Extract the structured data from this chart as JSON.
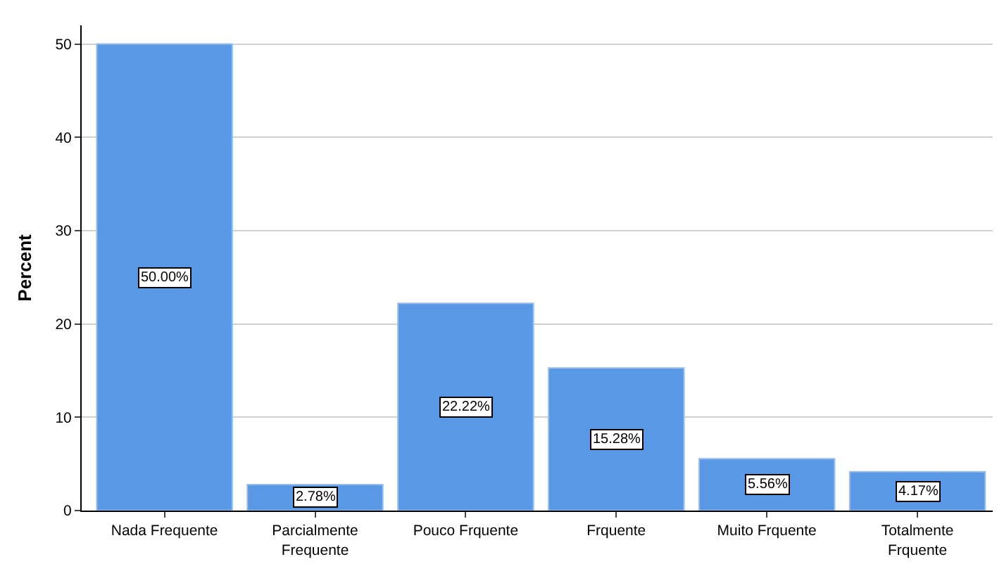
{
  "chart_data": {
    "type": "bar",
    "ylabel": "Percent",
    "categories": [
      "Nada Frequente",
      "Parcialmente Frequente",
      "Pouco Frquente",
      "Frquente",
      "Muito Frquente",
      "Totalmente Frquente"
    ],
    "values": [
      50.0,
      2.78,
      22.22,
      15.28,
      5.56,
      4.17
    ],
    "value_labels": [
      "50.00%",
      "2.78%",
      "22.22%",
      "15.28%",
      "5.56%",
      "4.17%"
    ],
    "color": "#5898e4",
    "ylim": [
      0,
      52
    ],
    "yticks": [
      0,
      10,
      20,
      30,
      40,
      50
    ],
    "grid": "y",
    "legend": false
  }
}
